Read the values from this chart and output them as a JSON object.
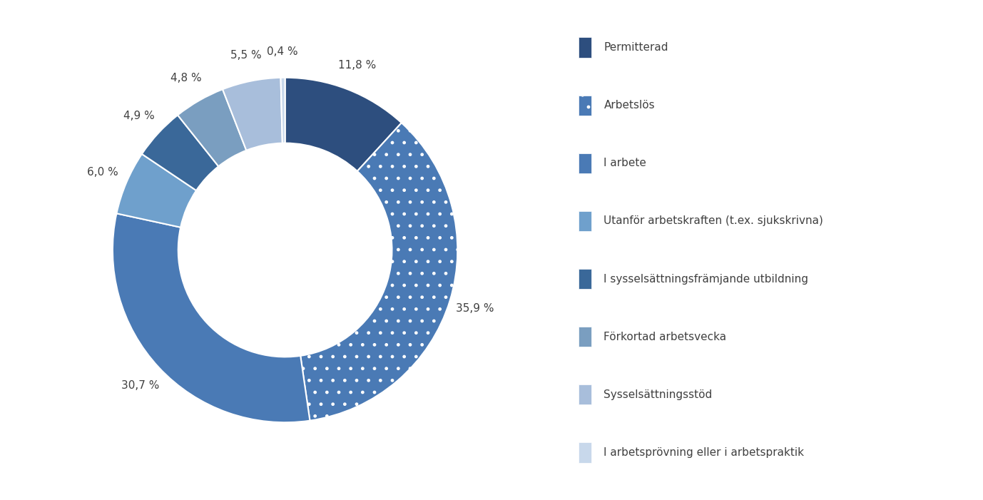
{
  "labels": [
    "Permitterad",
    "Arbetslös",
    "I arbete",
    "Utanför arbetskraften (t.ex. sjukskrivna)",
    "I sysselsättningsfrämjande utbildning",
    "Förkortad arbetsvecka",
    "Sysselsättningsstöd",
    "I arbetsprövning eller i arbetspraktik"
  ],
  "values": [
    11.8,
    35.9,
    30.7,
    6.0,
    4.9,
    4.8,
    5.5,
    0.4
  ],
  "colors": [
    "#2d4e7e",
    "#4a7ab5",
    "#4a7ab5",
    "#6fa0cc",
    "#3a6899",
    "#7a9ec0",
    "#a8bedb",
    "#c8d8eb"
  ],
  "hatch": [
    null,
    ".",
    null,
    null,
    null,
    null,
    null,
    null
  ],
  "pct_labels": [
    "11,8 %",
    "35,9 %",
    "30,7 %",
    "6,0 %",
    "4,9 %",
    "4,8 %",
    "5,5 %",
    "0,4 %"
  ],
  "background_color": "#ffffff",
  "label_fontsize": 11,
  "legend_fontsize": 11,
  "donut_width": 0.38
}
